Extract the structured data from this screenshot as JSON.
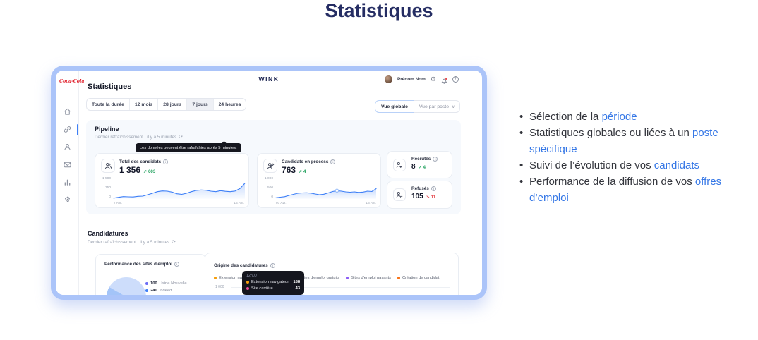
{
  "page": {
    "title": "Statistiques"
  },
  "bullets": [
    {
      "prefix": "Sélection de la ",
      "link": "période"
    },
    {
      "prefix": "Statistiques globales ou liées à un ",
      "link": "poste spécifique"
    },
    {
      "prefix": "Suivi de l’évolution de vos ",
      "link": "candidats"
    },
    {
      "prefix": "Performance de la diffusion de vos ",
      "link": "offres d’emploi"
    }
  ],
  "theme": {
    "navy_title": "#252d63",
    "frame_border": "#abc4f9",
    "accent_blue": "#3d7ff7",
    "green_up": "#1fa05c",
    "red_down": "#e5484d",
    "link_blue": "#3577e6",
    "tooltip_bg": "#15161e"
  },
  "app": {
    "brand": "WINK",
    "sidebar": {
      "logo": "Coca-Cola",
      "icons": [
        "home",
        "link",
        "user",
        "mail",
        "bar-chart",
        "settings"
      ],
      "active": "link"
    },
    "topbar": {
      "user_name": "Prénom Nom",
      "icons": [
        "settings",
        "notifications",
        "help"
      ]
    },
    "page_heading": "Statistiques",
    "periods": {
      "options": [
        "Toute la durée",
        "12 mois",
        "28 jours",
        "7 jours",
        "24 heures"
      ],
      "selected": "7 jours"
    },
    "views": {
      "global": "Vue globale",
      "by_post": "Vue par poste"
    },
    "pipeline": {
      "title": "Pipeline",
      "refresh_text": "Dernier rafraîchissement : il y a 5 minutes",
      "tooltip": "Les données peuvent être rafraîchies après 5 minutes.",
      "cards": {
        "total": {
          "label": "Total des candidats",
          "value": "1 356",
          "delta": "603"
        },
        "process": {
          "label": "Candidats en process",
          "value": "763",
          "delta": "4"
        },
        "recruited": {
          "label": "Recrutés",
          "value": "8",
          "delta": "4"
        },
        "refused": {
          "label": "Refusés",
          "value": "105",
          "delta": "11"
        }
      }
    },
    "candidatures": {
      "title": "Candidatures",
      "refresh_text": "Dernier rafraîchissement : il y a 5 minutes",
      "sites_card": {
        "title": "Performance des sites d'emploi",
        "legend": [
          {
            "value": "100",
            "label": "Usine Nouvelle",
            "color": "#6b6cf5"
          },
          {
            "value": "240",
            "label": "Indeed",
            "color": "#3d7ff7"
          }
        ]
      },
      "origin_card": {
        "title": "Origine des candidatures",
        "legend": [
          "Extension navigateur",
          "Site carrière",
          "Sites d'emploi gratuits",
          "Sites d'emploi payants",
          "Création de candidat"
        ],
        "legend_colors": [
          "#f59e0b",
          "#ec4899",
          "#14b8a6",
          "#8b5cf6",
          "#f97316"
        ],
        "ytick": "1 000",
        "tooltip": {
          "time": "12h00",
          "rows": [
            {
              "label": "Extension navigateur",
              "value": "188",
              "color": "#f59e0b"
            },
            {
              "label": "Site carrière",
              "value": "43",
              "color": "#ec4899"
            }
          ]
        }
      }
    }
  },
  "chart_data": [
    {
      "id": "total_candidats",
      "type": "line",
      "title": "Total des candidats",
      "current_total": 1356,
      "delta": 603,
      "ylim": [
        0,
        1500
      ],
      "yticks": [
        "1 500",
        "750",
        "0"
      ],
      "xticks": [
        "7 Avr.",
        "14 Avr."
      ],
      "grid": false,
      "line_color": "#3d7ff7",
      "values": [
        10,
        80,
        140,
        120,
        110,
        160,
        180,
        300,
        420,
        560,
        620,
        600,
        520,
        380,
        330,
        420,
        560,
        660,
        700,
        680,
        600,
        560,
        640,
        590,
        560,
        610,
        820,
        1280
      ]
    },
    {
      "id": "candidats_en_process",
      "type": "line",
      "title": "Candidats en process",
      "current_total": 763,
      "delta": 4,
      "ylim": [
        0,
        1000
      ],
      "yticks": [
        "1 000",
        "500",
        "0"
      ],
      "xticks": [
        "07 Avr.",
        "13 Avr."
      ],
      "grid": false,
      "line_color": "#3d7ff7",
      "marker_index": 14,
      "values": [
        30,
        60,
        90,
        160,
        220,
        280,
        300,
        310,
        290,
        240,
        200,
        230,
        300,
        380,
        430,
        400,
        360,
        340,
        360,
        330,
        350,
        400,
        380,
        540
      ]
    },
    {
      "id": "performance_sites_emploi",
      "type": "pie",
      "title": "Performance des sites d'emploi",
      "slices": [
        {
          "label": "Usine Nouvelle",
          "value": 100
        },
        {
          "label": "Indeed",
          "value": 240
        }
      ]
    },
    {
      "id": "origine_candidatures",
      "type": "line",
      "title": "Origine des candidatures",
      "series": [
        "Extension navigateur",
        "Site carrière",
        "Sites d'emploi gratuits",
        "Sites d'emploi payants",
        "Création de candidat"
      ],
      "ylim": [
        0,
        1000
      ],
      "visible_ytick": "1 000",
      "tooltip_snapshot": {
        "time": "12h00",
        "Extension navigateur": 188,
        "Site carrière": 43
      }
    }
  ]
}
